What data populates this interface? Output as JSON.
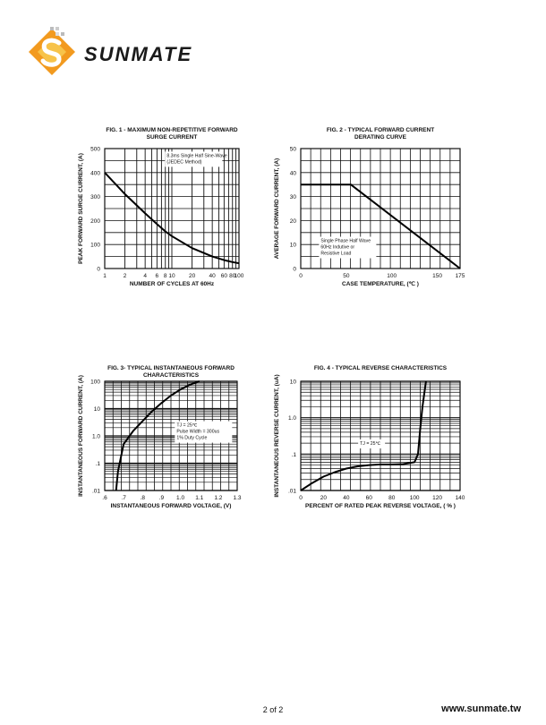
{
  "header": {
    "brand": "SUNMATE",
    "logo_mark": "s-logo-icon",
    "colors": {
      "logo_orange": "#f29a1f",
      "logo_yellow": "#f7c34a",
      "brand_text": "#1a1a1a"
    }
  },
  "footer": {
    "page": "2 of 2",
    "website": "www.sunmate.tw"
  },
  "chart_data": [
    {
      "type": "line",
      "title": "FIG. 1 - MAXIMUM NON-REPETITIVE FORWARD",
      "subtitle": "SURGE CURRENT",
      "xlabel": "NUMBER OF CYCLES AT 60Hz",
      "ylabel": "PEAK FORWARD SURGE CURRENT, (A)",
      "x_scale": "log",
      "xlim": [
        1,
        100
      ],
      "ylim": [
        0,
        500
      ],
      "x_ticks": [
        "1",
        "2",
        "4",
        "6",
        "8",
        "10",
        "20",
        "40",
        "60",
        "80",
        "100"
      ],
      "y_ticks": [
        "0",
        "100",
        "200",
        "300",
        "400",
        "500"
      ],
      "grid": true,
      "annotations": [
        "8.3ms Single Half Sine-Wave",
        "(JEDEC Method)"
      ],
      "series": [
        {
          "x": [
            1,
            2,
            4,
            6,
            8,
            10,
            20,
            40,
            60,
            80,
            100
          ],
          "y": [
            400,
            310,
            230,
            185,
            155,
            135,
            85,
            50,
            35,
            27,
            22
          ]
        }
      ]
    },
    {
      "type": "line",
      "title": "FIG. 2 - TYPICAL FORWARD CURRENT",
      "subtitle": "DERATING CURVE",
      "xlabel": "CASE TEMPERATURE, (℃ )",
      "ylabel": "AVERAGE FORWARD  CURRENT, (A)",
      "x_scale": "linear",
      "xlim": [
        0,
        175
      ],
      "ylim": [
        0,
        50
      ],
      "x_ticks": [
        "0",
        "50",
        "100",
        "150",
        "175"
      ],
      "y_ticks": [
        "0",
        "10",
        "20",
        "30",
        "40",
        "50"
      ],
      "grid": true,
      "annotations": [
        "Single Phase Half Wave",
        "60Hz Indutive or",
        "Resistive Load"
      ],
      "series": [
        {
          "x": [
            0,
            55,
            175
          ],
          "y": [
            35,
            35,
            0
          ]
        }
      ]
    },
    {
      "type": "line",
      "title": "FIG. 3- TYPICAL INSTANTANEOUS FORWARD",
      "subtitle": "CHARACTERISTICS",
      "xlabel": "INSTANTANEOUS FORWARD VOLTAGE, (V)",
      "ylabel": "INSTANTANEOUS FORWARD CURRENT, (A)",
      "x_scale": "linear",
      "y_scale": "log",
      "xlim": [
        0.6,
        1.3
      ],
      "ylim": [
        0.01,
        100
      ],
      "x_ticks": [
        ".6",
        ".7",
        ".8",
        ".9",
        "1.0",
        "1.1",
        "1.2",
        "1.3"
      ],
      "y_ticks": [
        ".01",
        ".1",
        "1.0",
        "10",
        "100"
      ],
      "grid": true,
      "annotations": [
        "TJ = 25℃",
        "Pulse Width = 300us",
        "1% Duty Cycle"
      ],
      "series": [
        {
          "x": [
            0.66,
            0.67,
            0.7,
            0.75,
            0.8,
            0.85,
            0.9,
            0.95,
            1.0,
            1.05,
            1.1
          ],
          "y": [
            0.01,
            0.05,
            0.5,
            1.5,
            3.5,
            8,
            16,
            30,
            50,
            75,
            100
          ]
        }
      ]
    },
    {
      "type": "line",
      "title": "FIG. 4 - TYPICAL REVERSE CHARACTERISTICS",
      "subtitle": "",
      "xlabel": "PERCENT OF RATED PEAK REVERSE VOLTAGE, ( % )",
      "ylabel": "INSTANTANEOUS REVERSE CURRENT, (uA)",
      "x_scale": "linear",
      "y_scale": "log",
      "xlim": [
        0,
        140
      ],
      "ylim": [
        0.01,
        10
      ],
      "x_ticks": [
        "0",
        "20",
        "40",
        "60",
        "80",
        "100",
        "120",
        "140"
      ],
      "y_ticks": [
        ".01",
        ".1",
        "1.0",
        "10"
      ],
      "grid": true,
      "annotations": [
        "TJ = 25℃"
      ],
      "series": [
        {
          "x": [
            0,
            10,
            20,
            30,
            40,
            50,
            60,
            70,
            80,
            90,
            100,
            103,
            105,
            107,
            110
          ],
          "y": [
            0.01,
            0.016,
            0.024,
            0.032,
            0.04,
            0.046,
            0.05,
            0.052,
            0.052,
            0.053,
            0.06,
            0.1,
            0.5,
            2,
            10
          ]
        }
      ]
    }
  ]
}
